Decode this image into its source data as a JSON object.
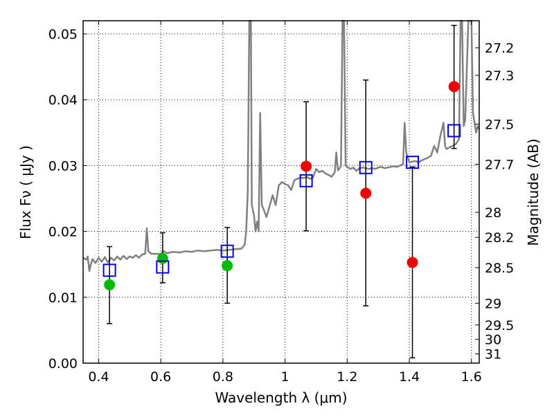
{
  "chart_data": {
    "type": "scatter",
    "xlabel": "Wavelength  λ (μm)",
    "ylabel": "Flux  Fν  ( μJy )",
    "ylabel_right": "Magnitude (AB)",
    "xlim": [
      0.35,
      1.625
    ],
    "ylim": [
      0.0,
      0.052
    ],
    "grid": true,
    "x_ticks": [
      0.4,
      0.6,
      0.8,
      1.0,
      1.2,
      1.4,
      1.6
    ],
    "x_tick_labels": [
      "0.4",
      "0.6",
      "0.8",
      "1",
      "1.2",
      "1.4",
      "1.6"
    ],
    "y_ticks": [
      0.0,
      0.01,
      0.02,
      0.03,
      0.04,
      0.05
    ],
    "y_tick_labels": [
      "0.00",
      "0.01",
      "0.02",
      "0.03",
      "0.04",
      "0.05"
    ],
    "right_ticks": [
      {
        "label": "27.2",
        "flux": 0.0479
      },
      {
        "label": "27.3",
        "flux": 0.0437
      },
      {
        "label": "27.5",
        "flux": 0.0363
      },
      {
        "label": "27.7",
        "flux": 0.0302
      },
      {
        "label": "28",
        "flux": 0.0229
      },
      {
        "label": "28.2",
        "flux": 0.0191
      },
      {
        "label": "28.5",
        "flux": 0.0145
      },
      {
        "label": "29",
        "flux": 0.0091
      },
      {
        "label": "29.5",
        "flux": 0.0058
      },
      {
        "label": "30",
        "flux": 0.0036
      },
      {
        "label": "31",
        "flux": 0.0014
      }
    ],
    "series": [
      {
        "marker": "circle",
        "color": "#00bb00",
        "points": [
          {
            "x": 0.435,
            "y": 0.0119,
            "yerr_low": 0.006,
            "yerr_high": 0.0177
          },
          {
            "x": 0.606,
            "y": 0.0159,
            "yerr_low": 0.0122,
            "yerr_high": 0.0198
          },
          {
            "x": 0.814,
            "y": 0.0148,
            "yerr_low": 0.0091,
            "yerr_high": 0.0206
          }
        ]
      },
      {
        "marker": "circle",
        "color": "#ee0000",
        "points": [
          {
            "x": 1.068,
            "y": 0.0299,
            "yerr_low": 0.0201,
            "yerr_high": 0.0397
          },
          {
            "x": 1.26,
            "y": 0.0258,
            "yerr_low": 0.0087,
            "yerr_high": 0.043
          },
          {
            "x": 1.41,
            "y": 0.0153,
            "yerr_low": 0.0008,
            "yerr_high": 0.0298
          },
          {
            "x": 1.544,
            "y": 0.042,
            "yerr_low": 0.0326,
            "yerr_high": 0.0513
          }
        ]
      },
      {
        "marker": "square",
        "color": "#0000dd",
        "points": [
          {
            "x": 0.435,
            "y": 0.0141
          },
          {
            "x": 0.606,
            "y": 0.0146
          },
          {
            "x": 0.814,
            "y": 0.017
          },
          {
            "x": 1.068,
            "y": 0.0277
          },
          {
            "x": 1.26,
            "y": 0.0297
          },
          {
            "x": 1.41,
            "y": 0.0305
          },
          {
            "x": 1.544,
            "y": 0.0353
          }
        ]
      },
      {
        "marker": "line",
        "color": "#808080",
        "points": [
          [
            0.35,
            0.016
          ],
          [
            0.36,
            0.0157
          ],
          [
            0.365,
            0.0162
          ],
          [
            0.37,
            0.014
          ],
          [
            0.375,
            0.015
          ],
          [
            0.38,
            0.0158
          ],
          [
            0.39,
            0.0152
          ],
          [
            0.4,
            0.016
          ],
          [
            0.41,
            0.0154
          ],
          [
            0.42,
            0.0161
          ],
          [
            0.43,
            0.0153
          ],
          [
            0.44,
            0.016
          ],
          [
            0.45,
            0.0156
          ],
          [
            0.46,
            0.0162
          ],
          [
            0.47,
            0.0157
          ],
          [
            0.48,
            0.0163
          ],
          [
            0.49,
            0.0158
          ],
          [
            0.5,
            0.0162
          ],
          [
            0.51,
            0.016
          ],
          [
            0.52,
            0.0164
          ],
          [
            0.53,
            0.016
          ],
          [
            0.54,
            0.0165
          ],
          [
            0.55,
            0.0166
          ],
          [
            0.555,
            0.0205
          ],
          [
            0.56,
            0.017
          ],
          [
            0.57,
            0.0166
          ],
          [
            0.58,
            0.0166
          ],
          [
            0.6,
            0.0166
          ],
          [
            0.61,
            0.017
          ],
          [
            0.62,
            0.0167
          ],
          [
            0.64,
            0.0169
          ],
          [
            0.66,
            0.0168
          ],
          [
            0.68,
            0.017
          ],
          [
            0.7,
            0.0169
          ],
          [
            0.72,
            0.0171
          ],
          [
            0.74,
            0.017
          ],
          [
            0.76,
            0.0171
          ],
          [
            0.78,
            0.0172
          ],
          [
            0.8,
            0.0171
          ],
          [
            0.82,
            0.0172
          ],
          [
            0.84,
            0.0173
          ],
          [
            0.86,
            0.0174
          ],
          [
            0.87,
            0.018
          ],
          [
            0.875,
            0.02
          ],
          [
            0.88,
            0.026
          ],
          [
            0.885,
            0.052
          ],
          [
            0.89,
            0.052
          ],
          [
            0.893,
            0.024
          ],
          [
            0.9,
            0.0225
          ],
          [
            0.905,
            0.02
          ],
          [
            0.91,
            0.0215
          ],
          [
            0.915,
            0.02
          ],
          [
            0.92,
            0.038
          ],
          [
            0.925,
            0.024
          ],
          [
            0.93,
            0.0235
          ],
          [
            0.94,
            0.0222
          ],
          [
            0.95,
            0.0238
          ],
          [
            0.96,
            0.0255
          ],
          [
            0.97,
            0.024
          ],
          [
            0.98,
            0.027
          ],
          [
            0.99,
            0.0275
          ],
          [
            1.0,
            0.0272
          ],
          [
            1.01,
            0.027
          ],
          [
            1.02,
            0.0263
          ],
          [
            1.03,
            0.0278
          ],
          [
            1.04,
            0.028
          ],
          [
            1.05,
            0.0282
          ],
          [
            1.06,
            0.0281
          ],
          [
            1.07,
            0.0283
          ],
          [
            1.08,
            0.028
          ],
          [
            1.09,
            0.0282
          ],
          [
            1.1,
            0.0295
          ],
          [
            1.11,
            0.029
          ],
          [
            1.12,
            0.0292
          ],
          [
            1.13,
            0.0288
          ],
          [
            1.14,
            0.0286
          ],
          [
            1.15,
            0.0283
          ],
          [
            1.16,
            0.029
          ],
          [
            1.165,
            0.032
          ],
          [
            1.17,
            0.0293
          ],
          [
            1.175,
            0.0295
          ],
          [
            1.18,
            0.03
          ],
          [
            1.185,
            0.052
          ],
          [
            1.19,
            0.052
          ],
          [
            1.195,
            0.03
          ],
          [
            1.2,
            0.0298
          ],
          [
            1.21,
            0.0295
          ],
          [
            1.22,
            0.0297
          ],
          [
            1.23,
            0.0292
          ],
          [
            1.24,
            0.0296
          ],
          [
            1.25,
            0.0297
          ],
          [
            1.26,
            0.0296
          ],
          [
            1.27,
            0.0295
          ],
          [
            1.28,
            0.0296
          ],
          [
            1.29,
            0.0295
          ],
          [
            1.3,
            0.0297
          ],
          [
            1.31,
            0.0298
          ],
          [
            1.32,
            0.0296
          ],
          [
            1.33,
            0.0297
          ],
          [
            1.34,
            0.0298
          ],
          [
            1.35,
            0.0299
          ],
          [
            1.36,
            0.0298
          ],
          [
            1.37,
            0.03
          ],
          [
            1.38,
            0.0302
          ],
          [
            1.385,
            0.0365
          ],
          [
            1.39,
            0.032
          ],
          [
            1.4,
            0.0305
          ],
          [
            1.41,
            0.0306
          ],
          [
            1.42,
            0.0307
          ],
          [
            1.43,
            0.0305
          ],
          [
            1.44,
            0.0308
          ],
          [
            1.45,
            0.031
          ],
          [
            1.46,
            0.0312
          ],
          [
            1.47,
            0.0315
          ],
          [
            1.48,
            0.033
          ],
          [
            1.49,
            0.032
          ],
          [
            1.5,
            0.0345
          ],
          [
            1.51,
            0.0365
          ],
          [
            1.515,
            0.033
          ],
          [
            1.52,
            0.0325
          ],
          [
            1.53,
            0.0328
          ],
          [
            1.54,
            0.033
          ],
          [
            1.55,
            0.0333
          ],
          [
            1.56,
            0.034
          ],
          [
            1.565,
            0.052
          ],
          [
            1.57,
            0.052
          ],
          [
            1.575,
            0.036
          ],
          [
            1.58,
            0.037
          ],
          [
            1.59,
            0.052
          ],
          [
            1.6,
            0.052
          ],
          [
            1.605,
            0.038
          ],
          [
            1.61,
            0.0365
          ],
          [
            1.615,
            0.035
          ],
          [
            1.62,
            0.036
          ],
          [
            1.625,
            0.0355
          ]
        ]
      }
    ]
  }
}
